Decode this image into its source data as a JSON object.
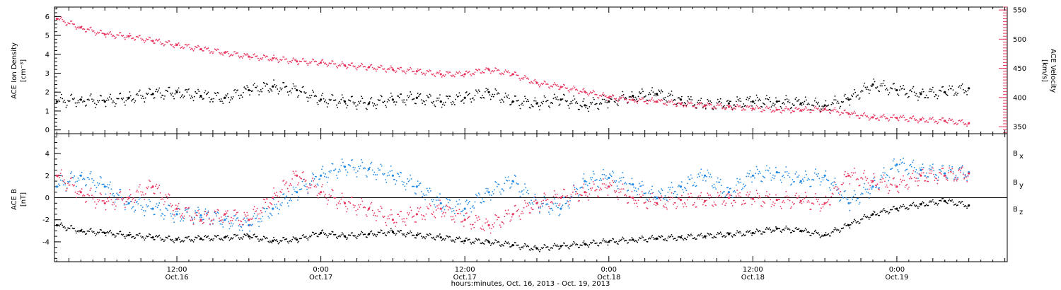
{
  "figure": {
    "xlabel": "hours:minutes, Oct. 16, 2013 - Oct. 19, 2013",
    "x_ticks": [
      {
        "time": "12:00",
        "date": "Oct.16",
        "hour": 12
      },
      {
        "time": "0:00",
        "date": "Oct.17",
        "hour": 24
      },
      {
        "time": "12:00",
        "date": "Oct.17",
        "hour": 36
      },
      {
        "time": "0:00",
        "date": "Oct.18",
        "hour": 48
      },
      {
        "time": "12:00",
        "date": "Oct.18",
        "hour": 60
      },
      {
        "time": "0:00",
        "date": "Oct.19",
        "hour": 72
      }
    ],
    "xlim_hours": [
      1.8,
      81.2
    ],
    "colors": {
      "black": "#000000",
      "red": "#e8355f",
      "blue": "#1e88e5"
    }
  },
  "chart_data": [
    {
      "type": "scatter",
      "title": "",
      "ylabel": "ACE Ion Density",
      "ylabel_unit": "[cm⁻³]",
      "ylim": [
        -0.2,
        6.5
      ],
      "yticks": [
        "0",
        "1",
        "2",
        "3",
        "4",
        "5",
        "6"
      ],
      "y2label": "ACE Velocity",
      "y2label_unit": "[km/s]",
      "y2lim": [
        338,
        555
      ],
      "y2ticks": [
        "350",
        "400",
        "450",
        "500",
        "550"
      ],
      "series": [
        {
          "name": "",
          "axis": "left",
          "color": "#000000",
          "x_hours": [
            2,
            4,
            6,
            8,
            10,
            12,
            14,
            16,
            18,
            20,
            22,
            24,
            26,
            28,
            30,
            32,
            34,
            36,
            38,
            40,
            42,
            44,
            46,
            48,
            50,
            52,
            54,
            56,
            58,
            60,
            62,
            64,
            66,
            68,
            70,
            72,
            74,
            76,
            78
          ],
          "values": [
            1.5,
            1.6,
            1.5,
            1.7,
            1.9,
            2.0,
            1.8,
            1.7,
            2.1,
            2.3,
            2.1,
            1.6,
            1.5,
            1.4,
            1.6,
            1.7,
            1.5,
            1.7,
            2.0,
            1.5,
            1.4,
            1.6,
            1.3,
            1.5,
            1.8,
            1.9,
            1.6,
            1.3,
            1.4,
            1.5,
            1.5,
            1.4,
            1.3,
            1.6,
            2.4,
            2.1,
            1.9,
            2.0,
            2.2
          ]
        },
        {
          "name": "",
          "axis": "right",
          "color": "#e8355f",
          "x_hours": [
            2,
            4,
            6,
            8,
            10,
            12,
            14,
            16,
            18,
            20,
            22,
            24,
            26,
            28,
            30,
            32,
            34,
            36,
            38,
            40,
            42,
            44,
            46,
            48,
            50,
            52,
            54,
            56,
            58,
            60,
            62,
            64,
            66,
            68,
            70,
            72,
            74,
            76,
            78
          ],
          "values": [
            535,
            520,
            508,
            505,
            497,
            490,
            483,
            477,
            470,
            467,
            462,
            460,
            455,
            452,
            448,
            445,
            440,
            440,
            448,
            440,
            425,
            418,
            410,
            400,
            396,
            393,
            389,
            386,
            384,
            381,
            379,
            378,
            380,
            372,
            366,
            365,
            362,
            360,
            356
          ]
        }
      ]
    },
    {
      "type": "scatter",
      "title": "",
      "ylabel": "ACE B",
      "ylabel_unit": "[nT]",
      "ylim": [
        -5.8,
        5.8
      ],
      "yticks": [
        "-4",
        "-2",
        "0",
        "2",
        "4"
      ],
      "zero_line": true,
      "series": [
        {
          "name": "B",
          "sub": "x",
          "color": "#000000",
          "x_hours": [
            2,
            4,
            6,
            8,
            10,
            12,
            14,
            16,
            18,
            20,
            22,
            24,
            26,
            28,
            30,
            32,
            34,
            36,
            38,
            40,
            42,
            44,
            46,
            48,
            50,
            52,
            54,
            56,
            58,
            60,
            62,
            64,
            66,
            68,
            70,
            72,
            74,
            76,
            78
          ],
          "values": [
            -2.5,
            -3.0,
            -3.2,
            -3.4,
            -3.6,
            -3.8,
            -3.7,
            -3.6,
            -3.5,
            -3.9,
            -3.8,
            -3.2,
            -3.5,
            -3.3,
            -3.1,
            -3.4,
            -3.6,
            -3.9,
            -4.0,
            -4.3,
            -4.6,
            -4.4,
            -4.2,
            -4.0,
            -3.8,
            -3.7,
            -3.6,
            -3.5,
            -3.3,
            -3.2,
            -2.8,
            -3.0,
            -3.4,
            -2.5,
            -1.5,
            -1.0,
            -0.6,
            -0.3,
            -0.7
          ]
        },
        {
          "name": "B",
          "sub": "y",
          "color": "#1e88e5",
          "x_hours": [
            2,
            4,
            6,
            8,
            10,
            12,
            14,
            16,
            18,
            20,
            22,
            24,
            26,
            28,
            30,
            32,
            34,
            36,
            38,
            40,
            42,
            44,
            46,
            48,
            50,
            52,
            54,
            56,
            58,
            60,
            62,
            64,
            66,
            68,
            70,
            72,
            74,
            76,
            78
          ],
          "values": [
            1.0,
            2.0,
            1.0,
            -0.5,
            -1.0,
            -1.5,
            -1.6,
            -2.0,
            -2.5,
            -1.0,
            0.5,
            2.0,
            2.8,
            2.6,
            2.0,
            1.0,
            -0.5,
            -1.0,
            0.5,
            1.5,
            -0.5,
            -1.0,
            1.5,
            1.8,
            1.2,
            0.0,
            1.0,
            2.0,
            0.5,
            2.0,
            2.3,
            1.5,
            2.0,
            -0.5,
            1.0,
            3.0,
            2.5,
            2.2,
            2.3
          ]
        },
        {
          "name": "B",
          "sub": "z",
          "color": "#e8355f",
          "x_hours": [
            2,
            4,
            6,
            8,
            10,
            12,
            14,
            16,
            18,
            20,
            22,
            24,
            26,
            28,
            30,
            32,
            34,
            36,
            38,
            40,
            42,
            44,
            46,
            48,
            50,
            52,
            54,
            56,
            58,
            60,
            62,
            64,
            66,
            68,
            70,
            72,
            74,
            76,
            78
          ],
          "values": [
            2.0,
            0.5,
            -0.5,
            0.0,
            1.0,
            -1.0,
            -2.0,
            -1.5,
            -2.0,
            0.0,
            2.0,
            0.5,
            -0.5,
            -1.0,
            -2.0,
            -1.5,
            -1.0,
            -2.0,
            -2.5,
            -1.5,
            -0.5,
            0.0,
            0.5,
            1.0,
            0.0,
            -0.5,
            -0.2,
            -0.3,
            0.0,
            -0.1,
            -0.2,
            -0.3,
            -0.5,
            2.0,
            1.5,
            1.0,
            2.0,
            2.0,
            2.2
          ]
        }
      ]
    }
  ]
}
